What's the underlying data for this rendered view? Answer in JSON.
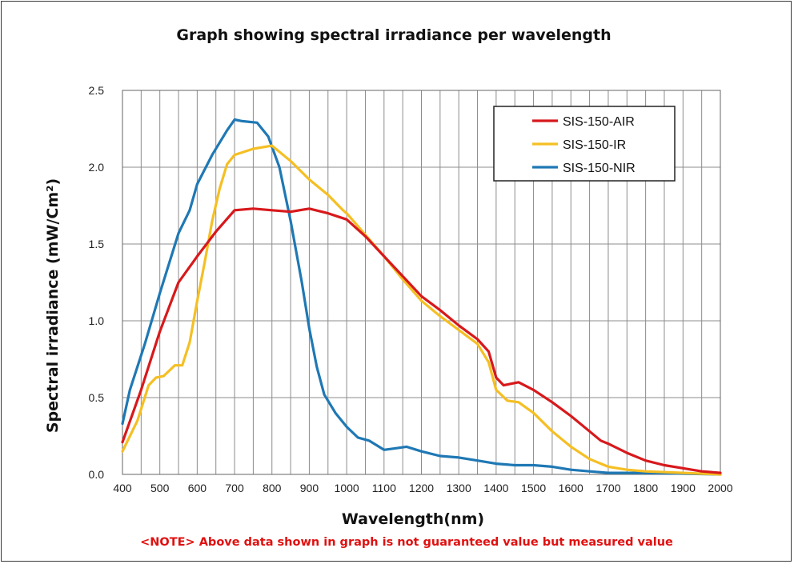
{
  "chart_data": {
    "type": "line",
    "title": "Graph showing spectral irradiance per wavelength",
    "xlabel": "Wavelength(nm)",
    "ylabel": "Spectral irradiance (mW/Cm²)",
    "note": "<NOTE> Above data shown in graph is not guaranteed value but measured value",
    "xlim": [
      400,
      2000
    ],
    "ylim": [
      0,
      2.5
    ],
    "xticks": [
      400,
      500,
      600,
      700,
      800,
      900,
      1000,
      1100,
      1200,
      1300,
      1400,
      1500,
      1600,
      1700,
      1800,
      1900,
      2000
    ],
    "yticks": [
      "0.0",
      "0.5",
      "1.0",
      "1.5",
      "2.0",
      "2.5"
    ],
    "grid": true,
    "legend_position": "top-right",
    "series": [
      {
        "name": "SIS-150-AIR",
        "color": "#d7191c",
        "points": [
          [
            400,
            0.21
          ],
          [
            450,
            0.55
          ],
          [
            500,
            0.93
          ],
          [
            550,
            1.25
          ],
          [
            600,
            1.42
          ],
          [
            650,
            1.58
          ],
          [
            700,
            1.72
          ],
          [
            750,
            1.73
          ],
          [
            800,
            1.72
          ],
          [
            850,
            1.71
          ],
          [
            900,
            1.73
          ],
          [
            950,
            1.7
          ],
          [
            1000,
            1.66
          ],
          [
            1050,
            1.55
          ],
          [
            1100,
            1.42
          ],
          [
            1150,
            1.29
          ],
          [
            1200,
            1.16
          ],
          [
            1250,
            1.07
          ],
          [
            1300,
            0.97
          ],
          [
            1350,
            0.88
          ],
          [
            1380,
            0.8
          ],
          [
            1400,
            0.63
          ],
          [
            1420,
            0.58
          ],
          [
            1460,
            0.6
          ],
          [
            1500,
            0.55
          ],
          [
            1550,
            0.47
          ],
          [
            1600,
            0.38
          ],
          [
            1650,
            0.28
          ],
          [
            1680,
            0.22
          ],
          [
            1700,
            0.2
          ],
          [
            1750,
            0.14
          ],
          [
            1800,
            0.09
          ],
          [
            1850,
            0.06
          ],
          [
            1900,
            0.04
          ],
          [
            1950,
            0.02
          ],
          [
            2000,
            0.01
          ]
        ]
      },
      {
        "name": "SIS-150-IR",
        "color": "#f5bf23",
        "points": [
          [
            400,
            0.15
          ],
          [
            440,
            0.35
          ],
          [
            470,
            0.58
          ],
          [
            490,
            0.63
          ],
          [
            510,
            0.64
          ],
          [
            540,
            0.71
          ],
          [
            560,
            0.71
          ],
          [
            580,
            0.86
          ],
          [
            600,
            1.13
          ],
          [
            620,
            1.38
          ],
          [
            640,
            1.65
          ],
          [
            660,
            1.86
          ],
          [
            680,
            2.02
          ],
          [
            700,
            2.08
          ],
          [
            750,
            2.12
          ],
          [
            800,
            2.14
          ],
          [
            850,
            2.04
          ],
          [
            900,
            1.92
          ],
          [
            950,
            1.82
          ],
          [
            990,
            1.72
          ],
          [
            1000,
            1.7
          ],
          [
            1050,
            1.56
          ],
          [
            1100,
            1.42
          ],
          [
            1150,
            1.27
          ],
          [
            1200,
            1.13
          ],
          [
            1250,
            1.03
          ],
          [
            1300,
            0.94
          ],
          [
            1350,
            0.85
          ],
          [
            1380,
            0.73
          ],
          [
            1400,
            0.55
          ],
          [
            1430,
            0.48
          ],
          [
            1460,
            0.47
          ],
          [
            1500,
            0.4
          ],
          [
            1550,
            0.28
          ],
          [
            1600,
            0.18
          ],
          [
            1650,
            0.1
          ],
          [
            1700,
            0.05
          ],
          [
            1750,
            0.03
          ],
          [
            1800,
            0.02
          ],
          [
            1900,
            0.01
          ],
          [
            2000,
            0.0
          ]
        ]
      },
      {
        "name": "SIS-150-NIR",
        "color": "#1f78b4",
        "points": [
          [
            400,
            0.33
          ],
          [
            420,
            0.55
          ],
          [
            460,
            0.85
          ],
          [
            500,
            1.18
          ],
          [
            550,
            1.57
          ],
          [
            580,
            1.72
          ],
          [
            600,
            1.89
          ],
          [
            640,
            2.08
          ],
          [
            680,
            2.24
          ],
          [
            700,
            2.31
          ],
          [
            720,
            2.3
          ],
          [
            760,
            2.29
          ],
          [
            790,
            2.2
          ],
          [
            820,
            2.0
          ],
          [
            850,
            1.65
          ],
          [
            880,
            1.25
          ],
          [
            900,
            0.95
          ],
          [
            920,
            0.7
          ],
          [
            940,
            0.52
          ],
          [
            970,
            0.4
          ],
          [
            1000,
            0.31
          ],
          [
            1030,
            0.24
          ],
          [
            1060,
            0.22
          ],
          [
            1100,
            0.16
          ],
          [
            1130,
            0.17
          ],
          [
            1160,
            0.18
          ],
          [
            1200,
            0.15
          ],
          [
            1250,
            0.12
          ],
          [
            1300,
            0.11
          ],
          [
            1350,
            0.09
          ],
          [
            1400,
            0.07
          ],
          [
            1450,
            0.06
          ],
          [
            1500,
            0.06
          ],
          [
            1550,
            0.05
          ],
          [
            1600,
            0.03
          ],
          [
            1650,
            0.02
          ],
          [
            1700,
            0.01
          ],
          [
            1800,
            0.01
          ],
          [
            2000,
            0.0
          ]
        ]
      }
    ]
  }
}
